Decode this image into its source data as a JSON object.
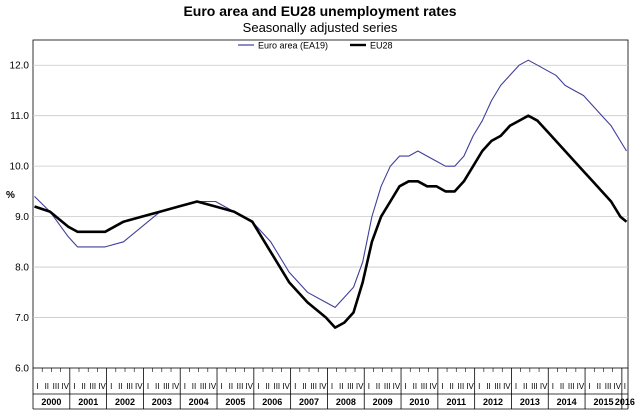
{
  "chart_data": {
    "type": "line",
    "title": "Euro area and EU28 unemployment rates",
    "subtitle": "Seasonally adjusted series",
    "ylabel": "%",
    "ylim": [
      6.0,
      12.5
    ],
    "yticks": [
      "6.0",
      "7.0",
      "8.0",
      "9.0",
      "10.0",
      "11.0",
      "12.0"
    ],
    "x_start": "2000-01",
    "x_end": "2016-02",
    "years": [
      "2000",
      "2001",
      "2002",
      "2003",
      "2004",
      "2005",
      "2006",
      "2007",
      "2008",
      "2009",
      "2010",
      "2011",
      "2012",
      "2013",
      "2014",
      "2015",
      "2016"
    ],
    "quarter_labels": [
      "I",
      "II",
      "III",
      "IV"
    ],
    "grid": true,
    "legend": "top-center",
    "series": [
      {
        "name": "Euro area (EA19)",
        "color": "#3f3f9c",
        "points": [
          [
            "2000-01",
            9.4
          ],
          [
            "2000-06",
            9.1
          ],
          [
            "2000-12",
            8.6
          ],
          [
            "2001-03",
            8.4
          ],
          [
            "2001-12",
            8.4
          ],
          [
            "2002-06",
            8.5
          ],
          [
            "2002-12",
            8.8
          ],
          [
            "2003-06",
            9.1
          ],
          [
            "2003-12",
            9.2
          ],
          [
            "2004-06",
            9.3
          ],
          [
            "2004-12",
            9.3
          ],
          [
            "2005-06",
            9.1
          ],
          [
            "2005-12",
            8.9
          ],
          [
            "2006-06",
            8.5
          ],
          [
            "2006-12",
            7.9
          ],
          [
            "2007-06",
            7.5
          ],
          [
            "2007-12",
            7.3
          ],
          [
            "2008-03",
            7.2
          ],
          [
            "2008-06",
            7.4
          ],
          [
            "2008-09",
            7.6
          ],
          [
            "2008-12",
            8.1
          ],
          [
            "2009-03",
            9.0
          ],
          [
            "2009-06",
            9.6
          ],
          [
            "2009-09",
            10.0
          ],
          [
            "2009-12",
            10.2
          ],
          [
            "2010-03",
            10.2
          ],
          [
            "2010-06",
            10.3
          ],
          [
            "2010-09",
            10.2
          ],
          [
            "2010-12",
            10.1
          ],
          [
            "2011-03",
            10.0
          ],
          [
            "2011-06",
            10.0
          ],
          [
            "2011-09",
            10.2
          ],
          [
            "2011-12",
            10.6
          ],
          [
            "2012-03",
            10.9
          ],
          [
            "2012-06",
            11.3
          ],
          [
            "2012-09",
            11.6
          ],
          [
            "2012-12",
            11.8
          ],
          [
            "2013-03",
            12.0
          ],
          [
            "2013-06",
            12.1
          ],
          [
            "2013-09",
            12.0
          ],
          [
            "2013-12",
            11.9
          ],
          [
            "2014-03",
            11.8
          ],
          [
            "2014-06",
            11.6
          ],
          [
            "2014-09",
            11.5
          ],
          [
            "2014-12",
            11.4
          ],
          [
            "2015-03",
            11.2
          ],
          [
            "2015-06",
            11.0
          ],
          [
            "2015-09",
            10.8
          ],
          [
            "2015-12",
            10.5
          ],
          [
            "2016-02",
            10.3
          ]
        ]
      },
      {
        "name": "EU28",
        "color": "#000000",
        "points": [
          [
            "2000-01",
            9.2
          ],
          [
            "2000-06",
            9.1
          ],
          [
            "2000-12",
            8.8
          ],
          [
            "2001-03",
            8.7
          ],
          [
            "2001-12",
            8.7
          ],
          [
            "2002-06",
            8.9
          ],
          [
            "2002-12",
            9.0
          ],
          [
            "2003-06",
            9.1
          ],
          [
            "2003-12",
            9.2
          ],
          [
            "2004-06",
            9.3
          ],
          [
            "2004-12",
            9.2
          ],
          [
            "2005-06",
            9.1
          ],
          [
            "2005-12",
            8.9
          ],
          [
            "2006-06",
            8.3
          ],
          [
            "2006-12",
            7.7
          ],
          [
            "2007-06",
            7.3
          ],
          [
            "2007-12",
            7.0
          ],
          [
            "2008-03",
            6.8
          ],
          [
            "2008-06",
            6.9
          ],
          [
            "2008-09",
            7.1
          ],
          [
            "2008-12",
            7.7
          ],
          [
            "2009-03",
            8.5
          ],
          [
            "2009-06",
            9.0
          ],
          [
            "2009-09",
            9.3
          ],
          [
            "2009-12",
            9.6
          ],
          [
            "2010-03",
            9.7
          ],
          [
            "2010-06",
            9.7
          ],
          [
            "2010-09",
            9.6
          ],
          [
            "2010-12",
            9.6
          ],
          [
            "2011-03",
            9.5
          ],
          [
            "2011-06",
            9.5
          ],
          [
            "2011-09",
            9.7
          ],
          [
            "2011-12",
            10.0
          ],
          [
            "2012-03",
            10.3
          ],
          [
            "2012-06",
            10.5
          ],
          [
            "2012-09",
            10.6
          ],
          [
            "2012-12",
            10.8
          ],
          [
            "2013-03",
            10.9
          ],
          [
            "2013-06",
            11.0
          ],
          [
            "2013-09",
            10.9
          ],
          [
            "2013-12",
            10.7
          ],
          [
            "2014-03",
            10.5
          ],
          [
            "2014-06",
            10.3
          ],
          [
            "2014-09",
            10.1
          ],
          [
            "2014-12",
            9.9
          ],
          [
            "2015-03",
            9.7
          ],
          [
            "2015-06",
            9.5
          ],
          [
            "2015-09",
            9.3
          ],
          [
            "2015-12",
            9.0
          ],
          [
            "2016-02",
            8.9
          ]
        ]
      }
    ]
  }
}
